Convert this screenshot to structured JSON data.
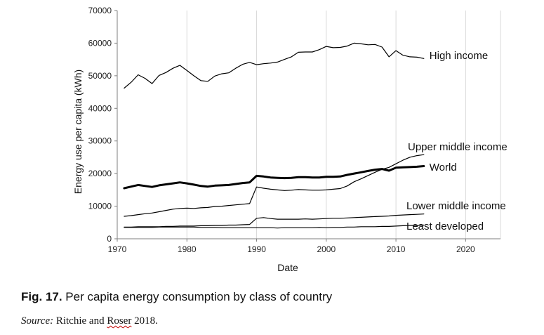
{
  "caption": {
    "label": "Fig. 17.",
    "text": " Per capita energy consumption by class of country"
  },
  "source": {
    "label": "Source:",
    "text_before": " Ritchie and ",
    "text_marked": "Roser",
    "text_after": " 2018."
  },
  "chart_data": {
    "type": "line",
    "xlabel": "Date",
    "ylabel": "Energy use per capita (kWh)",
    "xlim": [
      1970,
      2025
    ],
    "ylim": [
      0,
      70000
    ],
    "xticks": [
      1970,
      1980,
      1990,
      2000,
      2010,
      2020
    ],
    "yticks": [
      0,
      10000,
      20000,
      30000,
      40000,
      50000,
      60000,
      70000
    ],
    "grid": "vertical",
    "legend": "inline labels at line ends",
    "series": [
      {
        "name": "High income",
        "color": "#000000",
        "width": 1.2,
        "points": [
          [
            1971,
            46200
          ],
          [
            1972,
            48000
          ],
          [
            1973,
            50300
          ],
          [
            1974,
            49200
          ],
          [
            1975,
            47600
          ],
          [
            1976,
            50100
          ],
          [
            1977,
            51000
          ],
          [
            1978,
            52300
          ],
          [
            1979,
            53200
          ],
          [
            1980,
            51600
          ],
          [
            1981,
            50000
          ],
          [
            1982,
            48500
          ],
          [
            1983,
            48300
          ],
          [
            1984,
            49900
          ],
          [
            1985,
            50600
          ],
          [
            1986,
            50900
          ],
          [
            1987,
            52300
          ],
          [
            1988,
            53500
          ],
          [
            1989,
            54100
          ],
          [
            1990,
            53400
          ],
          [
            1991,
            53700
          ],
          [
            1992,
            53900
          ],
          [
            1993,
            54200
          ],
          [
            1994,
            55000
          ],
          [
            1995,
            55800
          ],
          [
            1996,
            57200
          ],
          [
            1997,
            57300
          ],
          [
            1998,
            57300
          ],
          [
            1999,
            58000
          ],
          [
            2000,
            59000
          ],
          [
            2001,
            58600
          ],
          [
            2002,
            58700
          ],
          [
            2003,
            59100
          ],
          [
            2004,
            60000
          ],
          [
            2005,
            59800
          ],
          [
            2006,
            59500
          ],
          [
            2007,
            59600
          ],
          [
            2008,
            58800
          ],
          [
            2009,
            55800
          ],
          [
            2010,
            57700
          ],
          [
            2011,
            56300
          ],
          [
            2012,
            55800
          ],
          [
            2013,
            55700
          ],
          [
            2014,
            55300
          ]
        ]
      },
      {
        "name": "Upper middle income",
        "color": "#000000",
        "width": 1.2,
        "points": [
          [
            1971,
            6900
          ],
          [
            1972,
            7100
          ],
          [
            1973,
            7400
          ],
          [
            1974,
            7700
          ],
          [
            1975,
            7900
          ],
          [
            1976,
            8300
          ],
          [
            1977,
            8700
          ],
          [
            1978,
            9100
          ],
          [
            1979,
            9300
          ],
          [
            1980,
            9400
          ],
          [
            1981,
            9300
          ],
          [
            1982,
            9500
          ],
          [
            1983,
            9600
          ],
          [
            1984,
            9900
          ],
          [
            1985,
            10000
          ],
          [
            1986,
            10200
          ],
          [
            1987,
            10400
          ],
          [
            1988,
            10600
          ],
          [
            1989,
            10800
          ],
          [
            1990,
            15900
          ],
          [
            1991,
            15500
          ],
          [
            1992,
            15200
          ],
          [
            1993,
            15000
          ],
          [
            1994,
            14800
          ],
          [
            1995,
            14900
          ],
          [
            1996,
            15100
          ],
          [
            1997,
            15000
          ],
          [
            1998,
            14900
          ],
          [
            1999,
            14900
          ],
          [
            2000,
            15000
          ],
          [
            2001,
            15200
          ],
          [
            2002,
            15400
          ],
          [
            2003,
            16200
          ],
          [
            2004,
            17500
          ],
          [
            2005,
            18400
          ],
          [
            2006,
            19400
          ],
          [
            2007,
            20400
          ],
          [
            2008,
            21300
          ],
          [
            2009,
            21900
          ],
          [
            2010,
            23000
          ],
          [
            2011,
            24100
          ],
          [
            2012,
            25000
          ],
          [
            2013,
            25500
          ],
          [
            2014,
            25800
          ]
        ]
      },
      {
        "name": "World",
        "color": "#000000",
        "width": 3,
        "points": [
          [
            1971,
            15500
          ],
          [
            1972,
            16000
          ],
          [
            1973,
            16500
          ],
          [
            1974,
            16200
          ],
          [
            1975,
            15900
          ],
          [
            1976,
            16400
          ],
          [
            1977,
            16700
          ],
          [
            1978,
            17000
          ],
          [
            1979,
            17300
          ],
          [
            1980,
            17000
          ],
          [
            1981,
            16600
          ],
          [
            1982,
            16200
          ],
          [
            1983,
            16000
          ],
          [
            1984,
            16300
          ],
          [
            1985,
            16400
          ],
          [
            1986,
            16500
          ],
          [
            1987,
            16800
          ],
          [
            1988,
            17100
          ],
          [
            1989,
            17300
          ],
          [
            1990,
            19300
          ],
          [
            1991,
            19100
          ],
          [
            1992,
            18800
          ],
          [
            1993,
            18700
          ],
          [
            1994,
            18600
          ],
          [
            1995,
            18700
          ],
          [
            1996,
            18900
          ],
          [
            1997,
            18900
          ],
          [
            1998,
            18800
          ],
          [
            1999,
            18800
          ],
          [
            2000,
            19000
          ],
          [
            2001,
            19000
          ],
          [
            2002,
            19100
          ],
          [
            2003,
            19600
          ],
          [
            2004,
            20000
          ],
          [
            2005,
            20400
          ],
          [
            2006,
            20800
          ],
          [
            2007,
            21200
          ],
          [
            2008,
            21400
          ],
          [
            2009,
            20900
          ],
          [
            2010,
            21800
          ],
          [
            2011,
            21900
          ],
          [
            2012,
            22000
          ],
          [
            2013,
            22100
          ],
          [
            2014,
            22300
          ]
        ]
      },
      {
        "name": "Lower middle income",
        "color": "#000000",
        "width": 1.2,
        "points": [
          [
            1971,
            3600
          ],
          [
            1972,
            3600
          ],
          [
            1973,
            3700
          ],
          [
            1974,
            3700
          ],
          [
            1975,
            3700
          ],
          [
            1976,
            3700
          ],
          [
            1977,
            3800
          ],
          [
            1978,
            3800
          ],
          [
            1979,
            3900
          ],
          [
            1980,
            3900
          ],
          [
            1981,
            3900
          ],
          [
            1982,
            4000
          ],
          [
            1983,
            4000
          ],
          [
            1984,
            4100
          ],
          [
            1985,
            4100
          ],
          [
            1986,
            4200
          ],
          [
            1987,
            4200
          ],
          [
            1988,
            4300
          ],
          [
            1989,
            4400
          ],
          [
            1990,
            6300
          ],
          [
            1991,
            6500
          ],
          [
            1992,
            6200
          ],
          [
            1993,
            6000
          ],
          [
            1994,
            6000
          ],
          [
            1995,
            6000
          ],
          [
            1996,
            6000
          ],
          [
            1997,
            6100
          ],
          [
            1998,
            6000
          ],
          [
            1999,
            6100
          ],
          [
            2000,
            6200
          ],
          [
            2001,
            6300
          ],
          [
            2002,
            6300
          ],
          [
            2003,
            6400
          ],
          [
            2004,
            6500
          ],
          [
            2005,
            6600
          ],
          [
            2006,
            6700
          ],
          [
            2007,
            6800
          ],
          [
            2008,
            6900
          ],
          [
            2009,
            7000
          ],
          [
            2010,
            7200
          ],
          [
            2011,
            7300
          ],
          [
            2012,
            7400
          ],
          [
            2013,
            7500
          ],
          [
            2014,
            7600
          ]
        ]
      },
      {
        "name": "Least developed",
        "color": "#000000",
        "width": 1.2,
        "points": [
          [
            1971,
            3500
          ],
          [
            1972,
            3500
          ],
          [
            1973,
            3500
          ],
          [
            1974,
            3500
          ],
          [
            1975,
            3500
          ],
          [
            1976,
            3600
          ],
          [
            1977,
            3600
          ],
          [
            1978,
            3600
          ],
          [
            1979,
            3600
          ],
          [
            1980,
            3600
          ],
          [
            1981,
            3600
          ],
          [
            1982,
            3500
          ],
          [
            1983,
            3500
          ],
          [
            1984,
            3500
          ],
          [
            1985,
            3400
          ],
          [
            1986,
            3400
          ],
          [
            1987,
            3400
          ],
          [
            1988,
            3400
          ],
          [
            1989,
            3400
          ],
          [
            1990,
            3400
          ],
          [
            1991,
            3400
          ],
          [
            1992,
            3400
          ],
          [
            1993,
            3300
          ],
          [
            1994,
            3400
          ],
          [
            1995,
            3400
          ],
          [
            1996,
            3400
          ],
          [
            1997,
            3400
          ],
          [
            1998,
            3400
          ],
          [
            1999,
            3500
          ],
          [
            2000,
            3400
          ],
          [
            2001,
            3500
          ],
          [
            2002,
            3500
          ],
          [
            2003,
            3600
          ],
          [
            2004,
            3600
          ],
          [
            2005,
            3700
          ],
          [
            2006,
            3700
          ],
          [
            2007,
            3700
          ],
          [
            2008,
            3800
          ],
          [
            2009,
            3800
          ],
          [
            2010,
            3900
          ],
          [
            2011,
            4000
          ],
          [
            2012,
            4100
          ],
          [
            2013,
            4100
          ],
          [
            2014,
            4200
          ]
        ]
      }
    ]
  }
}
